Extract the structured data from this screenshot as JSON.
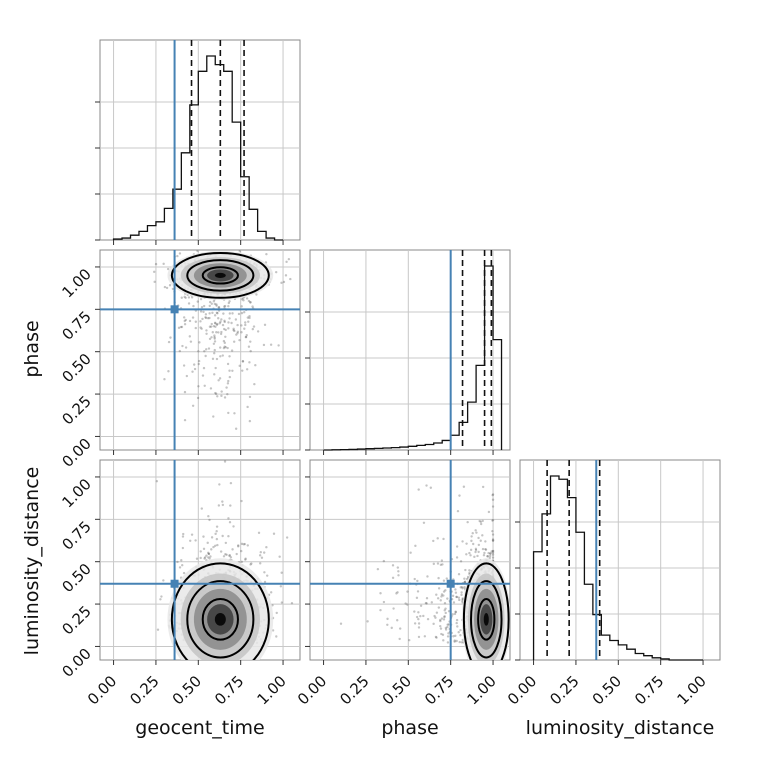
{
  "chart_data": {
    "type": "corner",
    "parameters": [
      "geocent_time",
      "phase",
      "luminosity_distance"
    ],
    "axis_labels": {
      "geocent_time": "geocent_time",
      "phase": "phase",
      "luminosity_distance": "luminosity_distance"
    },
    "ticks": {
      "geocent_time": [
        "0.00",
        "0.25",
        "0.50",
        "0.75",
        "1.00"
      ],
      "phase": [
        "0.00",
        "0.25",
        "0.50",
        "0.75",
        "1.00"
      ],
      "luminosity_distance": [
        "0.00",
        "0.25",
        "0.50",
        "0.75",
        "1.00"
      ]
    },
    "ranges": {
      "geocent_time": [
        -0.08,
        1.1
      ],
      "phase": [
        -0.08,
        1.1
      ],
      "luminosity_distance": [
        -0.08,
        1.1
      ]
    },
    "truths": {
      "geocent_time": 0.36,
      "phase": 0.75,
      "luminosity_distance": 0.37
    },
    "truth_color": "#4682b4",
    "quantiles": {
      "geocent_time": [
        0.46,
        0.63,
        0.77
      ],
      "phase": [
        0.82,
        0.95,
        0.99
      ],
      "luminosity_distance": [
        0.08,
        0.21,
        0.39
      ]
    },
    "histograms": {
      "geocent_time": {
        "bin_edges": [
          0.0,
          0.05,
          0.1,
          0.15,
          0.2,
          0.25,
          0.3,
          0.35,
          0.4,
          0.45,
          0.5,
          0.55,
          0.6,
          0.65,
          0.7,
          0.75,
          0.8,
          0.85,
          0.9,
          0.95,
          1.0
        ],
        "counts": [
          1,
          2,
          5,
          9,
          15,
          19,
          33,
          53,
          91,
          141,
          176,
          192,
          183,
          176,
          123,
          66,
          32,
          9,
          2,
          0
        ]
      },
      "phase": {
        "bin_edges": [
          0.0,
          0.05,
          0.1,
          0.15,
          0.2,
          0.25,
          0.3,
          0.35,
          0.4,
          0.45,
          0.5,
          0.55,
          0.6,
          0.65,
          0.7,
          0.75,
          0.8,
          0.85,
          0.9,
          0.95,
          1.0,
          1.05
        ],
        "counts": [
          0,
          1,
          2,
          3,
          5,
          7,
          9,
          11,
          13,
          16,
          20,
          25,
          30,
          38,
          52,
          80,
          150,
          260,
          460,
          1000,
          600
        ]
      },
      "luminosity_distance": {
        "bin_edges": [
          0.0,
          0.05,
          0.1,
          0.15,
          0.2,
          0.25,
          0.3,
          0.35,
          0.4,
          0.45,
          0.5,
          0.55,
          0.6,
          0.65,
          0.7,
          0.75,
          0.8,
          0.85,
          0.9,
          0.95,
          1.0
        ],
        "counts": [
          100,
          135,
          170,
          167,
          150,
          118,
          70,
          42,
          23,
          18,
          14,
          10,
          6,
          4,
          2,
          1,
          0,
          0,
          0,
          0
        ]
      }
    },
    "joint": {
      "phase_vs_geocent_time": {
        "x_mean": 0.63,
        "x_sd": 0.13,
        "y_mean": 0.95,
        "y_sd": 0.06,
        "y_tail_to": 0.0
      },
      "luminosity_distance_vs_geocent_time": {
        "x_mean": 0.63,
        "x_sd": 0.13,
        "y_mean": 0.16,
        "y_sd": 0.15
      },
      "luminosity_distance_vs_phase": {
        "x_mean": 0.96,
        "x_sd": 0.06,
        "y_mean": 0.16,
        "y_sd": 0.15
      }
    },
    "grid": true,
    "contour_levels": 3
  }
}
